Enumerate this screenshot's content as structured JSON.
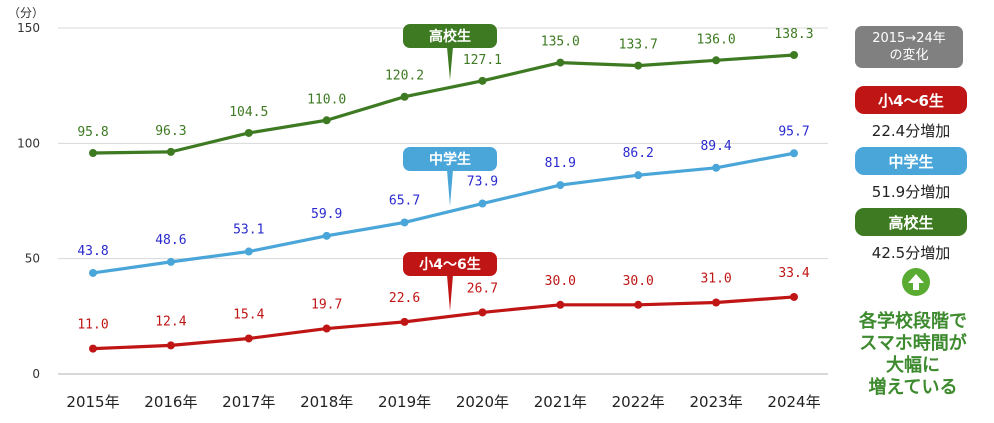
{
  "chart_data": {
    "type": "line",
    "y_unit_label": "（分）",
    "categories": [
      "2015年",
      "2016年",
      "2017年",
      "2018年",
      "2019年",
      "2020年",
      "2021年",
      "2022年",
      "2023年",
      "2024年"
    ],
    "ylim": [
      0,
      150
    ],
    "yticks": [
      "0",
      "50",
      "100",
      "150"
    ],
    "grid": true,
    "series": [
      {
        "name": "高校生",
        "color": "#3d7a22",
        "label_color": "#3d7a22",
        "values": [
          95.8,
          96.3,
          104.5,
          110.0,
          120.2,
          127.1,
          135.0,
          133.7,
          136.0,
          138.3
        ],
        "value_labels": [
          "95.8",
          "96.3",
          "104.5",
          "110.0",
          "120.2",
          "127.1",
          "135.0",
          "133.7",
          "136.0",
          "138.3"
        ]
      },
      {
        "name": "中学生",
        "color": "#4aa6d9",
        "label_color": "#2a2ad0",
        "values": [
          43.8,
          48.6,
          53.1,
          59.9,
          65.7,
          73.9,
          81.9,
          86.2,
          89.4,
          95.7
        ],
        "value_labels": [
          "43.8",
          "48.6",
          "53.1",
          "59.9",
          "65.7",
          "73.9",
          "81.9",
          "86.2",
          "89.4",
          "95.7"
        ]
      },
      {
        "name": "小4〜6生",
        "color": "#c01515",
        "label_color": "#c01515",
        "values": [
          11.0,
          12.4,
          15.4,
          19.7,
          22.6,
          26.7,
          30.0,
          30.0,
          31.0,
          33.4
        ],
        "value_labels": [
          "11.0",
          "12.4",
          "15.4",
          "19.7",
          "22.6",
          "26.7",
          "30.0",
          "30.0",
          "31.0",
          "33.4"
        ]
      }
    ]
  },
  "sidebar": {
    "summary_line1": "2015→24年",
    "summary_line2": "の変化",
    "items": [
      {
        "label": "小4〜6生",
        "delta": "22.4分増加",
        "color": "#c01515"
      },
      {
        "label": "中学生",
        "delta": "51.9分増加",
        "color": "#4aa6d9"
      },
      {
        "label": "高校生",
        "delta": "42.5分増加",
        "color": "#3d7a22"
      }
    ],
    "arrow_icon": "up-arrow-icon",
    "conclusion_lines": [
      "各学校段階で",
      "スマホ時間が",
      "大幅に",
      "増えている"
    ]
  }
}
